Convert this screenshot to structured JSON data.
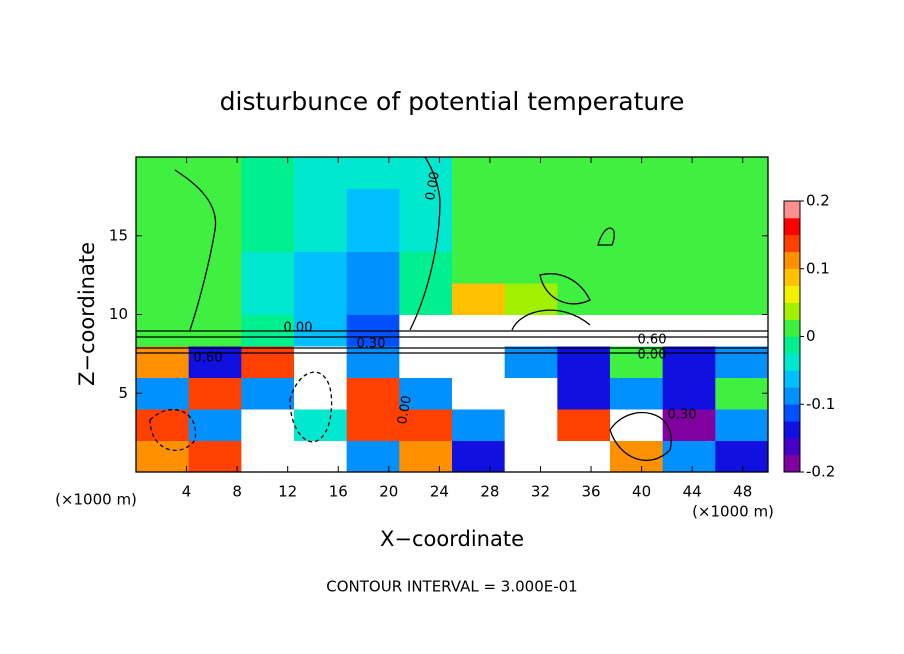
{
  "chart_data": {
    "type": "heatmap",
    "title": "disturbunce of potential temperature",
    "x_label": "X−coordinate",
    "y_label": "Z−coordinate",
    "x_unit_labels": [
      "(×1000 m)",
      "(×1000 m)"
    ],
    "footnote": "CONTOUR INTERVAL = 3.000E-01",
    "xlim": [
      0,
      50
    ],
    "ylim": [
      0,
      20
    ],
    "xticks": [
      4,
      8,
      12,
      16,
      20,
      24,
      28,
      32,
      36,
      40,
      44,
      48
    ],
    "yticks": [
      5,
      10,
      15
    ],
    "z": [
      [
        0.1,
        0.15,
        0.3,
        0.3,
        -0.1,
        0.1,
        -0.15,
        0.3,
        0.3,
        0.1,
        -0.1,
        -0.15
      ],
      [
        0.15,
        -0.1,
        0.3,
        -0.05,
        0.15,
        0.15,
        -0.1,
        0.3,
        0.15,
        0.3,
        -0.2,
        -0.1
      ],
      [
        -0.1,
        0.15,
        -0.1,
        0.3,
        0.15,
        -0.1,
        0.3,
        0.3,
        -0.15,
        -0.1,
        -0.15,
        0
      ],
      [
        0.1,
        -0.15,
        0.15,
        0.3,
        -0.1,
        0.3,
        0.3,
        -0.1,
        -0.15,
        0,
        -0.15,
        -0.1
      ],
      [
        0,
        0,
        -0.02,
        -0.06,
        -0.12,
        0.3,
        0.3,
        0.3,
        0.3,
        0.3,
        0.3,
        0.3
      ],
      [
        0,
        0,
        -0.03,
        -0.07,
        -0.1,
        -0.02,
        0.08,
        0.04,
        0,
        0,
        0,
        0
      ],
      [
        0,
        0,
        -0.03,
        -0.06,
        -0.08,
        -0.02,
        0.02,
        0,
        0,
        0,
        0,
        0
      ],
      [
        0.02,
        0,
        -0.02,
        -0.05,
        -0.07,
        -0.03,
        0,
        0,
        0,
        0.02,
        0,
        0
      ],
      [
        0,
        0,
        -0.02,
        -0.04,
        -0.06,
        -0.03,
        0,
        0,
        0,
        0,
        0,
        0
      ],
      [
        0,
        0,
        -0.02,
        -0.03,
        -0.05,
        -0.03,
        0,
        0,
        0,
        0,
        0,
        0
      ]
    ],
    "colorbar_lim": [
      -0.2,
      0.2
    ],
    "colorbar_ticks": [
      -0.2,
      -0.1,
      0,
      0.1,
      0.2
    ],
    "colors": [
      "#8000a0",
      "#4800c8",
      "#1010e0",
      "#0050ff",
      "#0090ff",
      "#00c0ff",
      "#00e8d0",
      "#00f090",
      "#40f040",
      "#a0f000",
      "#f0f000",
      "#ffc000",
      "#ff9000",
      "#ff4000",
      "#ff0000",
      "#ff9090"
    ],
    "out_of_range_color": "#ffffff",
    "contour_labels": [
      "0.00",
      "0.00",
      "0.60",
      "0.60",
      "0.00",
      "0.30",
      "0.30",
      "0.00"
    ]
  }
}
